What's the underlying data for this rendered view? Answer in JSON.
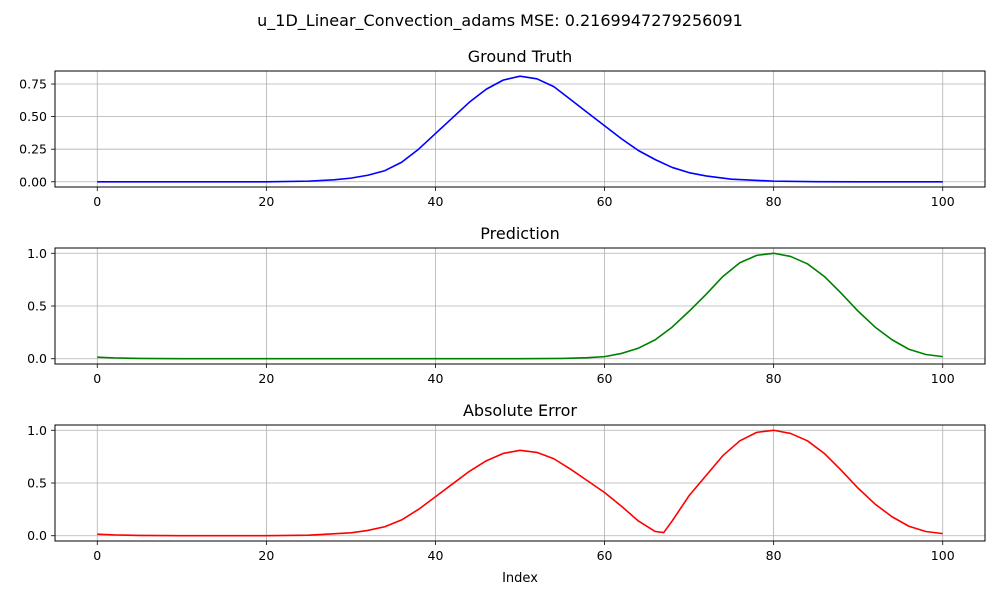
{
  "suptitle": "u_1D_Linear_Convection_adams MSE: 0.2169947279256091",
  "chart_data": [
    {
      "type": "line",
      "title": "Ground Truth",
      "xlabel": "",
      "ylabel": "",
      "xlim": [
        -5,
        105
      ],
      "ylim": [
        -0.04,
        0.85
      ],
      "xticks": [
        0,
        20,
        40,
        60,
        80,
        100
      ],
      "yticks": [
        0.0,
        0.25,
        0.5,
        0.75
      ],
      "ytick_labels": [
        "0.00",
        "0.25",
        "0.50",
        "0.75"
      ],
      "grid": true,
      "color": "#0000ff",
      "x": [
        0,
        5,
        10,
        15,
        20,
        25,
        28,
        30,
        32,
        34,
        36,
        38,
        40,
        42,
        44,
        46,
        48,
        50,
        52,
        54,
        56,
        58,
        60,
        62,
        64,
        66,
        68,
        70,
        72,
        75,
        80,
        85,
        90,
        95,
        100
      ],
      "values": [
        0.0,
        0.0,
        0.0,
        0.0,
        0.0,
        0.005,
        0.015,
        0.028,
        0.05,
        0.085,
        0.15,
        0.25,
        0.37,
        0.49,
        0.61,
        0.71,
        0.78,
        0.81,
        0.79,
        0.73,
        0.63,
        0.53,
        0.43,
        0.33,
        0.24,
        0.17,
        0.11,
        0.07,
        0.045,
        0.02,
        0.005,
        0.001,
        0.0,
        0.0,
        0.0
      ]
    },
    {
      "type": "line",
      "title": "Prediction",
      "xlabel": "",
      "ylabel": "",
      "xlim": [
        -5,
        105
      ],
      "ylim": [
        -0.05,
        1.05
      ],
      "xticks": [
        0,
        20,
        40,
        60,
        80,
        100
      ],
      "yticks": [
        0.0,
        0.5,
        1.0
      ],
      "ytick_labels": [
        "0.0",
        "0.5",
        "1.0"
      ],
      "grid": true,
      "color": "#008000",
      "x": [
        0,
        2,
        5,
        10,
        20,
        30,
        40,
        50,
        55,
        58,
        60,
        62,
        64,
        66,
        68,
        70,
        72,
        74,
        76,
        78,
        80,
        82,
        84,
        86,
        88,
        90,
        92,
        94,
        96,
        98,
        100
      ],
      "values": [
        0.015,
        0.008,
        0.003,
        0.0,
        0.0,
        0.0,
        0.0,
        0.0,
        0.003,
        0.01,
        0.02,
        0.05,
        0.1,
        0.18,
        0.3,
        0.45,
        0.61,
        0.78,
        0.91,
        0.98,
        1.0,
        0.97,
        0.9,
        0.78,
        0.62,
        0.45,
        0.3,
        0.18,
        0.09,
        0.04,
        0.02
      ]
    },
    {
      "type": "line",
      "title": "Absolute Error",
      "xlabel": "Index",
      "ylabel": "",
      "xlim": [
        -5,
        105
      ],
      "ylim": [
        -0.05,
        1.05
      ],
      "xticks": [
        0,
        20,
        40,
        60,
        80,
        100
      ],
      "yticks": [
        0.0,
        0.5,
        1.0
      ],
      "ytick_labels": [
        "0.0",
        "0.5",
        "1.0"
      ],
      "grid": true,
      "color": "#ff0000",
      "x": [
        0,
        2,
        5,
        10,
        20,
        25,
        30,
        32,
        34,
        36,
        38,
        40,
        42,
        44,
        46,
        48,
        50,
        52,
        54,
        56,
        58,
        60,
        62,
        64,
        66,
        67,
        68,
        70,
        72,
        74,
        76,
        78,
        80,
        82,
        84,
        86,
        88,
        90,
        92,
        94,
        96,
        98,
        100
      ],
      "values": [
        0.015,
        0.008,
        0.003,
        0.0,
        0.0,
        0.005,
        0.028,
        0.05,
        0.085,
        0.15,
        0.25,
        0.37,
        0.49,
        0.61,
        0.71,
        0.78,
        0.81,
        0.79,
        0.73,
        0.63,
        0.52,
        0.41,
        0.28,
        0.14,
        0.04,
        0.03,
        0.14,
        0.38,
        0.57,
        0.76,
        0.9,
        0.98,
        1.0,
        0.97,
        0.9,
        0.78,
        0.62,
        0.45,
        0.3,
        0.18,
        0.09,
        0.04,
        0.02
      ]
    }
  ]
}
